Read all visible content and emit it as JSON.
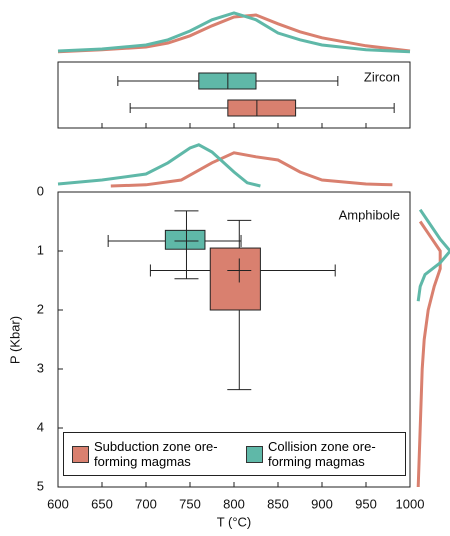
{
  "chart_data": [
    {
      "type": "box-horizontal",
      "title": "Zircon",
      "xlim": [
        600,
        1000
      ],
      "xticks": [
        600,
        650,
        700,
        750,
        800,
        850,
        900,
        950,
        1000
      ],
      "series": [
        {
          "color": "#d9806f",
          "box": {
            "min": 682,
            "q1": 793,
            "median": 826,
            "q3": 870,
            "max": 982
          },
          "density_x": [
            600,
            650,
            700,
            725,
            750,
            775,
            800,
            825,
            850,
            875,
            900,
            950,
            1000
          ],
          "density": [
            0.03,
            0.08,
            0.15,
            0.25,
            0.43,
            0.68,
            0.9,
            0.95,
            0.73,
            0.53,
            0.38,
            0.18,
            0.05
          ]
        },
        {
          "color": "#5fb8a8",
          "box": {
            "min": 668,
            "q1": 760,
            "median": 793,
            "q3": 825,
            "max": 918
          },
          "density_x": [
            600,
            650,
            700,
            725,
            750,
            775,
            800,
            825,
            850,
            875,
            900,
            950,
            1000
          ],
          "density": [
            0.05,
            0.1,
            0.2,
            0.33,
            0.55,
            0.83,
            1.0,
            0.83,
            0.5,
            0.33,
            0.2,
            0.08,
            0.03
          ]
        }
      ]
    },
    {
      "type": "box-cross",
      "title": "Amphibole",
      "xlabel": "T (°C)",
      "ylabel": "P (Kbar)",
      "xlim": [
        600,
        1000
      ],
      "xticks": [
        600,
        650,
        700,
        750,
        800,
        850,
        900,
        950,
        1000
      ],
      "ylim": [
        0,
        5
      ],
      "yticks": [
        0,
        1,
        2,
        3,
        4,
        5
      ],
      "y_inverted": true,
      "series": [
        {
          "name": "Subduction zone ore-forming magmas",
          "color": "#d9806f",
          "x_stats": {
            "min": 705,
            "q1": 773,
            "mean": 806,
            "q3": 830,
            "max": 915
          },
          "y_stats": {
            "min": 0.48,
            "q1": 0.95,
            "mean": 1.33,
            "q3": 2.0,
            "max": 3.35
          },
          "density_x": [
            660,
            700,
            740,
            775,
            800,
            825,
            850,
            875,
            900,
            950,
            980
          ],
          "density": [
            0.05,
            0.08,
            0.2,
            0.63,
            0.88,
            0.78,
            0.7,
            0.4,
            0.2,
            0.1,
            0.08
          ],
          "density_p": [
            0.5,
            0.8,
            1.0,
            1.3,
            1.6,
            2.0,
            2.5,
            3.0,
            4.0,
            5.0
          ],
          "density_p_values": [
            0.08,
            0.38,
            0.58,
            0.58,
            0.43,
            0.28,
            0.18,
            0.13,
            0.08,
            0.03
          ]
        },
        {
          "name": "Collision zone ore-forming magmas",
          "color": "#5fb8a8",
          "x_stats": {
            "min": 657,
            "q1": 722,
            "mean": 746,
            "q3": 767,
            "max": 808
          },
          "y_stats": {
            "min": 0.32,
            "q1": 0.65,
            "mean": 0.83,
            "q3": 0.97,
            "max": 1.47
          },
          "density_x": [
            600,
            650,
            700,
            725,
            750,
            760,
            775,
            800,
            815,
            830
          ],
          "density": [
            0.1,
            0.2,
            0.35,
            0.63,
            1.0,
            1.08,
            0.9,
            0.4,
            0.13,
            0.05
          ],
          "density_p": [
            0.3,
            0.5,
            0.8,
            1.0,
            1.2,
            1.4,
            1.6,
            1.85
          ],
          "density_p_values": [
            0.08,
            0.28,
            0.58,
            0.83,
            0.58,
            0.2,
            0.08,
            0.03
          ]
        }
      ]
    }
  ]
}
